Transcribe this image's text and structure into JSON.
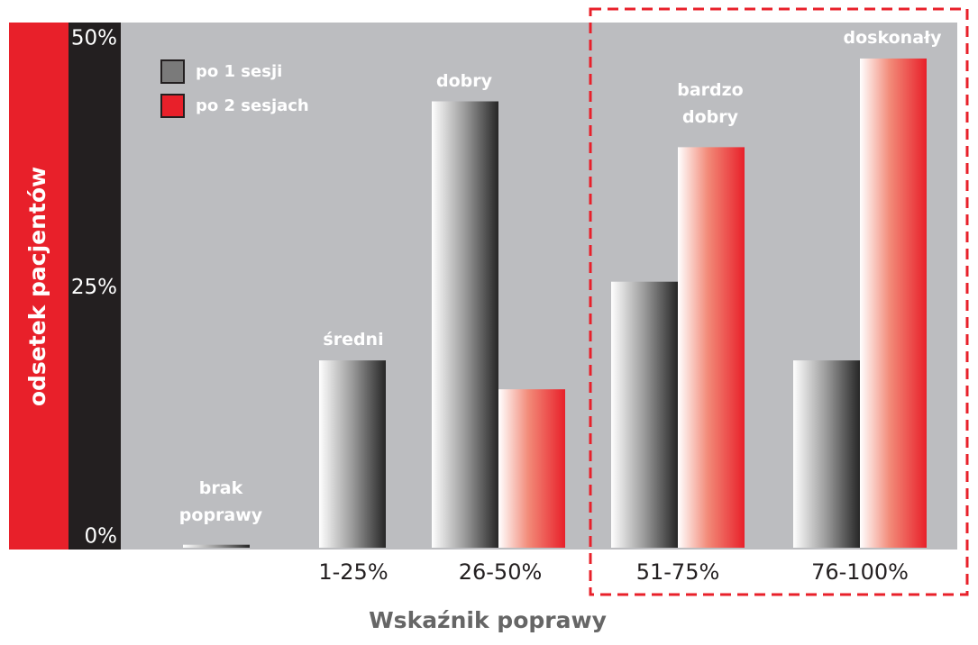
{
  "chart_data": {
    "type": "bar",
    "x_label": "Wskaźnik poprawy",
    "y_label": "odsetek pacjentów",
    "categories": [
      null,
      "1-25%",
      "26-50%",
      "51-75%",
      "76-100%"
    ],
    "annotations": [
      "brak poprawy",
      "średni",
      "dobry",
      "bardzo dobry",
      "doskonały"
    ],
    "series": [
      {
        "name": "po 1 sesji",
        "color": "#7a7a7a",
        "values": [
          0.3,
          18.8,
          44.8,
          26.7,
          18.8
        ]
      },
      {
        "name": "po 2 sesjach",
        "color": "#e8202a",
        "values": [
          0,
          0,
          15.9,
          40.2,
          49.1
        ]
      }
    ],
    "ylim": [
      0,
      50
    ],
    "yticks": [
      {
        "value": 0,
        "label": "0%"
      },
      {
        "value": 25,
        "label": "25%"
      },
      {
        "value": 50,
        "label": "50%"
      }
    ]
  }
}
